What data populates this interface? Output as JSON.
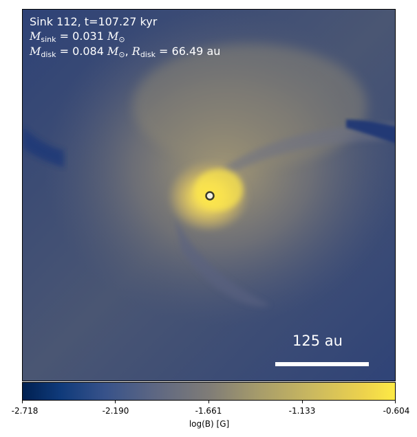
{
  "annotation": {
    "line1": "Sink 112, t=107.27 kyr",
    "msink_symbol": "M",
    "msink_sub": "sink",
    "msink_value": " = 0.031 ",
    "msun_symbol": "M",
    "msun_sub": "⊙",
    "mdisk_symbol": "M",
    "mdisk_sub": "disk",
    "mdisk_value": " = 0.084 ",
    "mdisk_sun_symbol": "M",
    "mdisk_sun_sub": "⊙",
    "rdisk_sep": ", ",
    "rdisk_symbol": "R",
    "rdisk_sub": "disk",
    "rdisk_value": " = 66.49 au"
  },
  "scale_bar": {
    "label": "125 au"
  },
  "colorbar": {
    "title": "log(B) [G]",
    "ticks": [
      "-2.718",
      "-2.190",
      "-1.661",
      "-1.133",
      "-0.604"
    ],
    "colormap": "cividis",
    "colors": {
      "low": "#002051",
      "mid": "#7f7c77",
      "high": "#fdea45"
    }
  }
}
